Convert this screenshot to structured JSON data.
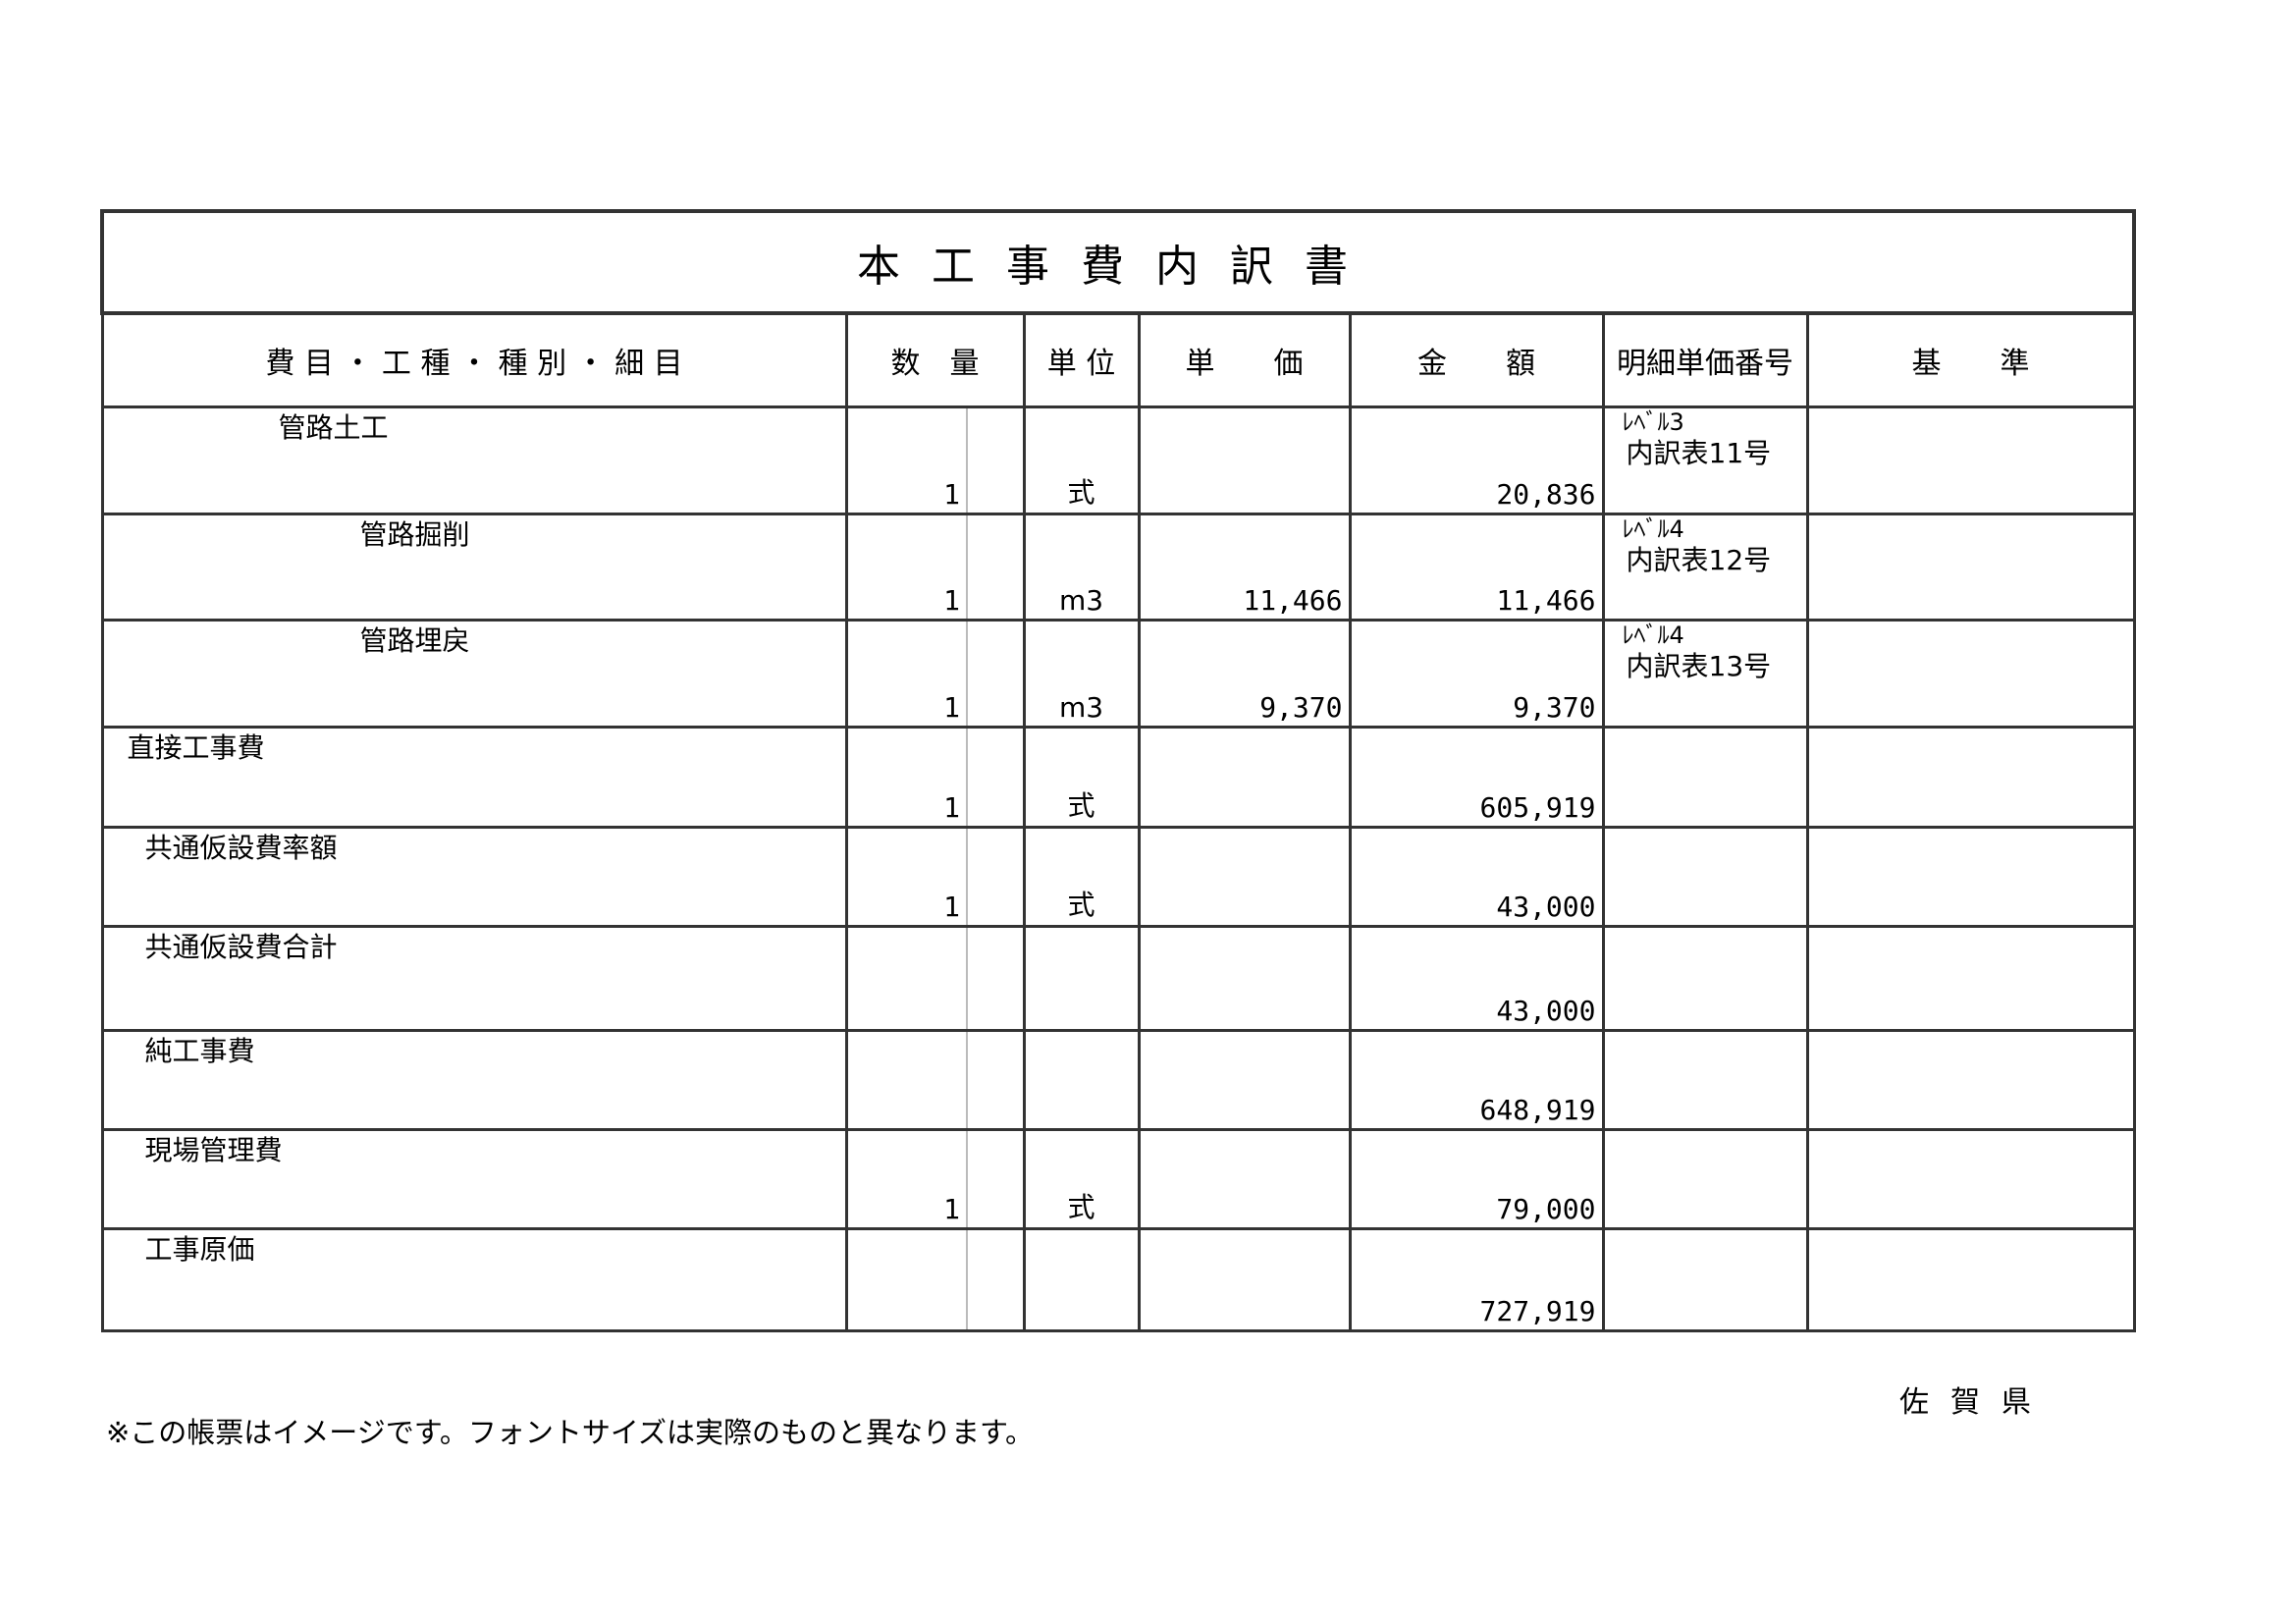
{
  "title": "本工事費内訳書",
  "headers": {
    "item": "費 目 ・ 工 種 ・ 種 別 ・ 細 目",
    "quantity": "数　量",
    "unit": "単 位",
    "unit_price": "単　　価",
    "amount": "金　　額",
    "detail_no": "明細単価番号",
    "standard": "基　　準"
  },
  "rows": [
    {
      "name": "管路土工",
      "level": 2,
      "quantity": "1",
      "unit": "式",
      "unit_price": "",
      "amount": "20,836",
      "ref_level": "ﾚﾍﾞﾙ3",
      "ref_table": "内訳表11号"
    },
    {
      "name": "管路掘削",
      "level": 3,
      "quantity": "1",
      "unit": "m3",
      "unit_price": "11,466",
      "amount": "11,466",
      "ref_level": "ﾚﾍﾞﾙ4",
      "ref_table": "内訳表12号"
    },
    {
      "name": "管路埋戻",
      "level": 3,
      "quantity": "1",
      "unit": "m3",
      "unit_price": "9,370",
      "amount": "9,370",
      "ref_level": "ﾚﾍﾞﾙ4",
      "ref_table": "内訳表13号"
    },
    {
      "name": "直接工事費",
      "level": 0,
      "quantity": "1",
      "unit": "式",
      "unit_price": "",
      "amount": "605,919",
      "ref_level": "",
      "ref_table": ""
    },
    {
      "name": "共通仮設費率額",
      "level": 1,
      "quantity": "1",
      "unit": "式",
      "unit_price": "",
      "amount": "43,000",
      "ref_level": "",
      "ref_table": ""
    },
    {
      "name": "共通仮設費合計",
      "level": 1,
      "quantity": "",
      "unit": "",
      "unit_price": "",
      "amount": "43,000",
      "ref_level": "",
      "ref_table": ""
    },
    {
      "name": "純工事費",
      "level": 1,
      "quantity": "",
      "unit": "",
      "unit_price": "",
      "amount": "648,919",
      "ref_level": "",
      "ref_table": ""
    },
    {
      "name": "現場管理費",
      "level": 1,
      "quantity": "1",
      "unit": "式",
      "unit_price": "",
      "amount": "79,000",
      "ref_level": "",
      "ref_table": ""
    },
    {
      "name": "工事原価",
      "level": 1,
      "quantity": "",
      "unit": "",
      "unit_price": "",
      "amount": "727,919",
      "ref_level": "",
      "ref_table": ""
    }
  ],
  "prefecture": "佐賀県",
  "note": "※この帳票はイメージです。フォントサイズは実際のものと異なります。"
}
